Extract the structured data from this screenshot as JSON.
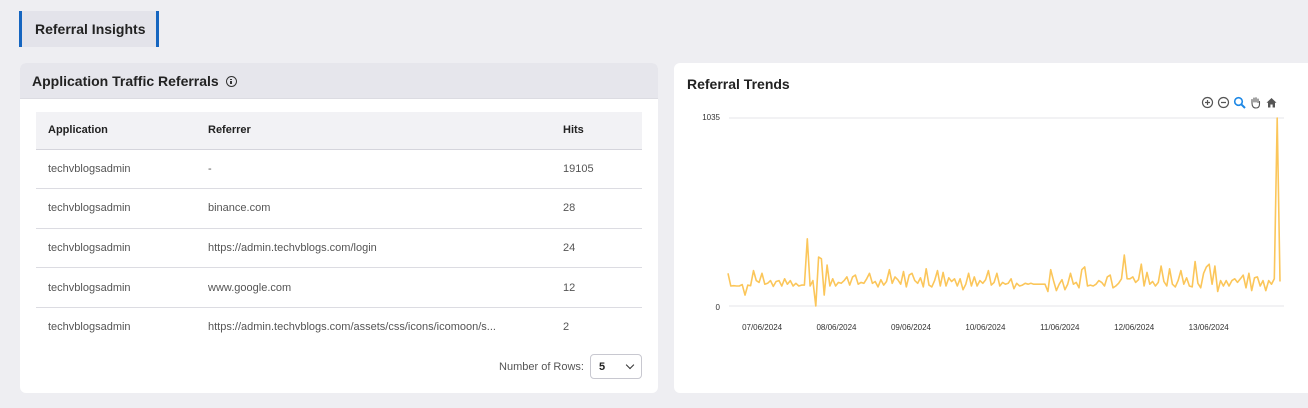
{
  "page_tab": {
    "label": "Referral Insights"
  },
  "traffic_card": {
    "title": "Application Traffic Referrals",
    "columns": [
      "Application",
      "Referrer",
      "Hits"
    ],
    "rows": [
      [
        "techvblogsadmin",
        "-",
        "19105"
      ],
      [
        "techvblogsadmin",
        "binance.com",
        "28"
      ],
      [
        "techvblogsadmin",
        "https://admin.techvblogs.com/login",
        "24"
      ],
      [
        "techvblogsadmin",
        "www.google.com",
        "12"
      ],
      [
        "techvblogsadmin",
        "https://admin.techvblogs.com/assets/css/icons/icomoon/s...",
        "2"
      ]
    ],
    "rows_label": "Number of Rows:",
    "rows_value": "5"
  },
  "trends_card": {
    "title": "Referral Trends",
    "toolbar_icons": [
      "zoom-in-icon",
      "zoom-out-icon",
      "zoom-select-icon",
      "pan-hand-icon",
      "home-reset-icon"
    ]
  },
  "colors": {
    "accent": "#1565c0",
    "series": "#fbc65a",
    "icon_blue": "#1e88e5"
  },
  "chart_data": {
    "type": "line",
    "ylim": [
      0,
      1035
    ],
    "y_ticks": [
      "0",
      "1035"
    ],
    "x_ticks": [
      "07/06/2024",
      "08/06/2024",
      "09/06/2024",
      "10/06/2024",
      "11/06/2024",
      "12/06/2024",
      "13/06/2024"
    ],
    "x_start": "2024-06-06T13:00",
    "x_end": "2024-06-13T23:00",
    "grid": false,
    "values": [
      180,
      110,
      112,
      110,
      110,
      118,
      60,
      115,
      112,
      195,
      140,
      130,
      180,
      120,
      125,
      140,
      108,
      135,
      140,
      110,
      150,
      120,
      140,
      110,
      125,
      110,
      115,
      115,
      370,
      110,
      140,
      0,
      270,
      260,
      60,
      225,
      110,
      150,
      110,
      130,
      125,
      140,
      160,
      115,
      160,
      170,
      120,
      130,
      125,
      150,
      180,
      125,
      135,
      105,
      145,
      115,
      135,
      200,
      125,
      160,
      145,
      120,
      190,
      105,
      170,
      180,
      140,
      125,
      155,
      105,
      205,
      115,
      105,
      140,
      195,
      110,
      185,
      110,
      155,
      135,
      150,
      110,
      150,
      90,
      120,
      180,
      110,
      160,
      110,
      140,
      125,
      145,
      195,
      115,
      130,
      180,
      110,
      130,
      120,
      125,
      150,
      95,
      125,
      110,
      115,
      125,
      120,
      125,
      120,
      120,
      120,
      120,
      120,
      80,
      200,
      140,
      85,
      120,
      145,
      90,
      120,
      180,
      120,
      130,
      100,
      200,
      215,
      110,
      115,
      110,
      120,
      140,
      130,
      110,
      160,
      170,
      100,
      110,
      125,
      150,
      280,
      150,
      150,
      160,
      130,
      145,
      230,
      110,
      185,
      120,
      135,
      110,
      130,
      220,
      135,
      110,
      205,
      120,
      105,
      140,
      195,
      120,
      155,
      110,
      105,
      245,
      125,
      100,
      180,
      215,
      230,
      120,
      220,
      80,
      140,
      110,
      140,
      110,
      140,
      150,
      130,
      150,
      170,
      100,
      180,
      85,
      155,
      160,
      110,
      140,
      85,
      140,
      120,
      150,
      1035,
      135
    ]
  }
}
